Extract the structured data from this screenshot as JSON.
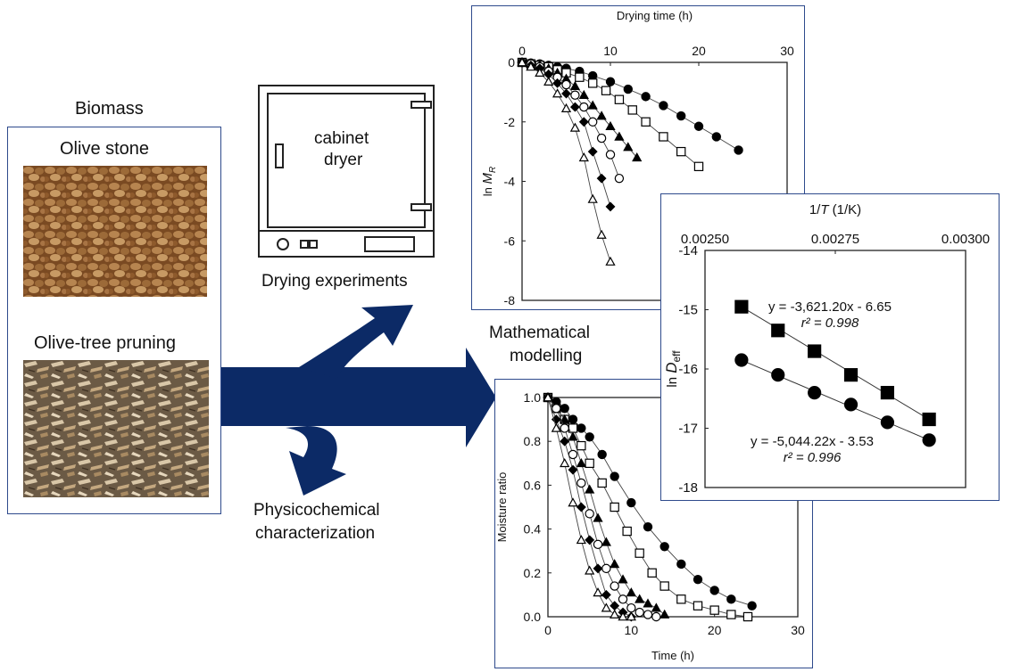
{
  "biomass": {
    "title": "Biomass",
    "olive_stone": "Olive stone",
    "olive_tree_pruning": "Olive-tree pruning"
  },
  "dryer": {
    "label_line1": "cabinet",
    "label_line2": "dryer"
  },
  "drying_experiments": "Drying experiments",
  "mathematical_modelling": {
    "line1": "Mathematical",
    "line2": "modelling"
  },
  "physicochemical": {
    "line1": "Physicochemical",
    "line2": "characterization"
  },
  "colors": {
    "arrow": "#0c2a66",
    "frame": "#2e4a8c"
  },
  "chart_data": [
    {
      "type": "line",
      "title": "",
      "xlabel": "Drying time (h)",
      "ylabel": "ln M_R",
      "xlim": [
        0,
        30
      ],
      "ylim": [
        -8,
        0
      ],
      "xticks": [
        "0",
        "10",
        "20",
        "30"
      ],
      "yticks": [
        "0",
        "-2",
        "-4",
        "-6",
        "-8"
      ],
      "series": [
        {
          "marker": "circle-filled",
          "x": [
            0,
            1,
            2,
            3,
            4,
            5,
            6.5,
            8,
            10,
            12,
            14,
            16,
            18,
            20,
            22,
            24.5
          ],
          "y": [
            0,
            -0.02,
            -0.05,
            -0.1,
            -0.15,
            -0.2,
            -0.3,
            -0.45,
            -0.65,
            -0.9,
            -1.15,
            -1.45,
            -1.8,
            -2.15,
            -2.5,
            -2.95
          ]
        },
        {
          "marker": "square-open",
          "x": [
            0,
            1,
            2,
            3,
            4,
            5,
            6.5,
            8,
            9.5,
            11,
            12.5,
            14,
            16,
            18,
            20
          ],
          "y": [
            0,
            -0.05,
            -0.1,
            -0.15,
            -0.25,
            -0.35,
            -0.5,
            -0.7,
            -0.95,
            -1.25,
            -1.6,
            -2.0,
            -2.5,
            -3.0,
            -3.5
          ]
        },
        {
          "marker": "triangle-filled",
          "x": [
            0,
            1,
            2,
            3,
            4,
            5,
            6,
            7,
            8,
            9,
            10,
            11,
            12,
            13
          ],
          "y": [
            0,
            -0.05,
            -0.1,
            -0.2,
            -0.35,
            -0.55,
            -0.8,
            -1.1,
            -1.45,
            -1.8,
            -2.15,
            -2.5,
            -2.85,
            -3.2
          ]
        },
        {
          "marker": "circle-open",
          "x": [
            0,
            1,
            2,
            3,
            4,
            5,
            6,
            7,
            8,
            9,
            10,
            11
          ],
          "y": [
            0,
            -0.05,
            -0.15,
            -0.3,
            -0.5,
            -0.75,
            -1.1,
            -1.5,
            -2.0,
            -2.55,
            -3.1,
            -3.9
          ]
        },
        {
          "marker": "diamond-filled",
          "x": [
            0,
            1,
            2,
            3,
            4,
            5,
            6,
            7,
            8,
            9,
            10
          ],
          "y": [
            0,
            -0.1,
            -0.2,
            -0.4,
            -0.7,
            -1.05,
            -1.5,
            -2.0,
            -3.0,
            -3.9,
            -4.85
          ]
        },
        {
          "marker": "triangle-open",
          "x": [
            0,
            1,
            2,
            3,
            4,
            5,
            6,
            7,
            8,
            9,
            10
          ],
          "y": [
            0,
            -0.15,
            -0.35,
            -0.65,
            -1.05,
            -1.55,
            -2.2,
            -3.2,
            -4.6,
            -5.8,
            -6.7
          ]
        }
      ]
    },
    {
      "type": "scatter",
      "title": "",
      "xlabel": "1/T (1/K)",
      "ylabel": "ln D_eff",
      "xlim": [
        0.0025,
        0.003
      ],
      "ylim": [
        -18,
        -14
      ],
      "xticks": [
        "0.00250",
        "0.00275",
        "0.00300"
      ],
      "yticks": [
        "-14",
        "-15",
        "-16",
        "-17",
        "-18"
      ],
      "series": [
        {
          "marker": "square-filled",
          "x": [
            0.00257,
            0.00264,
            0.00271,
            0.00278,
            0.00285,
            0.00293
          ],
          "y": [
            -14.95,
            -15.35,
            -15.7,
            -16.1,
            -16.4,
            -16.85
          ],
          "equation": "y = -3,621.20x - 6.65",
          "r2": "r² = 0.998"
        },
        {
          "marker": "circle-filled",
          "x": [
            0.00257,
            0.00264,
            0.00271,
            0.00278,
            0.00285,
            0.00293
          ],
          "y": [
            -15.85,
            -16.1,
            -16.4,
            -16.6,
            -16.9,
            -17.2
          ],
          "equation": "y = -5,044.22x - 3.53",
          "r2": "r² = 0.996"
        }
      ]
    },
    {
      "type": "line",
      "title": "",
      "xlabel": "Time (h)",
      "ylabel": "Moisture ratio",
      "xlim": [
        0,
        30
      ],
      "ylim": [
        0,
        1.0
      ],
      "xticks": [
        "0",
        "10",
        "20",
        "30"
      ],
      "yticks": [
        "0.0",
        "0.2",
        "0.4",
        "0.6",
        "0.8",
        "1.0"
      ],
      "series": [
        {
          "marker": "circle-filled",
          "x": [
            0,
            1,
            2,
            3,
            4,
            5,
            6.5,
            8,
            10,
            12,
            14,
            16,
            18,
            20,
            22,
            24.5
          ],
          "y": [
            1,
            0.98,
            0.95,
            0.9,
            0.86,
            0.82,
            0.74,
            0.64,
            0.52,
            0.41,
            0.32,
            0.24,
            0.17,
            0.12,
            0.08,
            0.05
          ]
        },
        {
          "marker": "square-open",
          "x": [
            0,
            1,
            2,
            3,
            4,
            5,
            6.5,
            8,
            9.5,
            11,
            12.5,
            14,
            16,
            18,
            20,
            22,
            24
          ],
          "y": [
            1,
            0.95,
            0.9,
            0.86,
            0.78,
            0.7,
            0.61,
            0.5,
            0.39,
            0.29,
            0.2,
            0.14,
            0.08,
            0.05,
            0.03,
            0.01,
            0
          ]
        },
        {
          "marker": "triangle-filled",
          "x": [
            0,
            1,
            2,
            3,
            4,
            5,
            6,
            7,
            8,
            9,
            10,
            11,
            12,
            13,
            14
          ],
          "y": [
            1,
            0.95,
            0.9,
            0.82,
            0.7,
            0.58,
            0.45,
            0.34,
            0.24,
            0.17,
            0.11,
            0.08,
            0.06,
            0.04,
            0.01
          ]
        },
        {
          "marker": "circle-open",
          "x": [
            0,
            1,
            2,
            3,
            4,
            5,
            6,
            7,
            8,
            9,
            10,
            11,
            12,
            13
          ],
          "y": [
            1,
            0.95,
            0.86,
            0.74,
            0.61,
            0.47,
            0.33,
            0.22,
            0.14,
            0.08,
            0.04,
            0.02,
            0.01,
            0
          ]
        },
        {
          "marker": "diamond-filled",
          "x": [
            0,
            1,
            2,
            3,
            4,
            5,
            6,
            7,
            8,
            9,
            10
          ],
          "y": [
            1,
            0.9,
            0.8,
            0.67,
            0.5,
            0.35,
            0.22,
            0.1,
            0.05,
            0.02,
            0
          ]
        },
        {
          "marker": "triangle-open",
          "x": [
            0,
            1,
            2,
            3,
            4,
            5,
            6,
            7,
            8,
            9,
            10
          ],
          "y": [
            1,
            0.86,
            0.7,
            0.52,
            0.35,
            0.21,
            0.11,
            0.04,
            0.01,
            0,
            0
          ]
        }
      ]
    }
  ]
}
